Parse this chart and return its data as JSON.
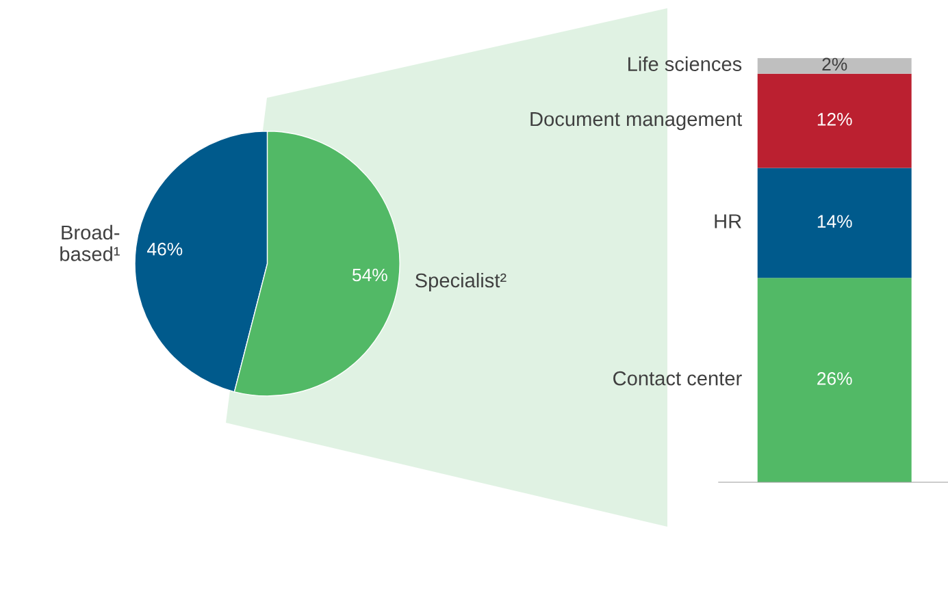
{
  "chart_data": [
    {
      "type": "pie",
      "categories": [
        "Broad-\nbased¹",
        "Specialist²"
      ],
      "values": [
        46,
        54
      ],
      "colors": [
        "#005a8c",
        "#52b966"
      ],
      "value_labels": [
        "46%",
        "54%"
      ]
    },
    {
      "type": "bar",
      "stacked": true,
      "categories": [
        null
      ],
      "series": [
        {
          "name": "Contact center",
          "color": "#52b966",
          "values": [
            26
          ],
          "value_labels": [
            "26%"
          ]
        },
        {
          "name": "HR",
          "color": "#005a8c",
          "values": [
            14
          ],
          "value_labels": [
            "14%"
          ]
        },
        {
          "name": "Document management",
          "color": "#bb2030",
          "values": [
            12
          ],
          "value_labels": [
            "12%"
          ]
        },
        {
          "name": "Life sciences",
          "color": "#bfbfbf",
          "values": [
            2
          ],
          "value_labels": [
            "2%"
          ]
        }
      ]
    }
  ]
}
